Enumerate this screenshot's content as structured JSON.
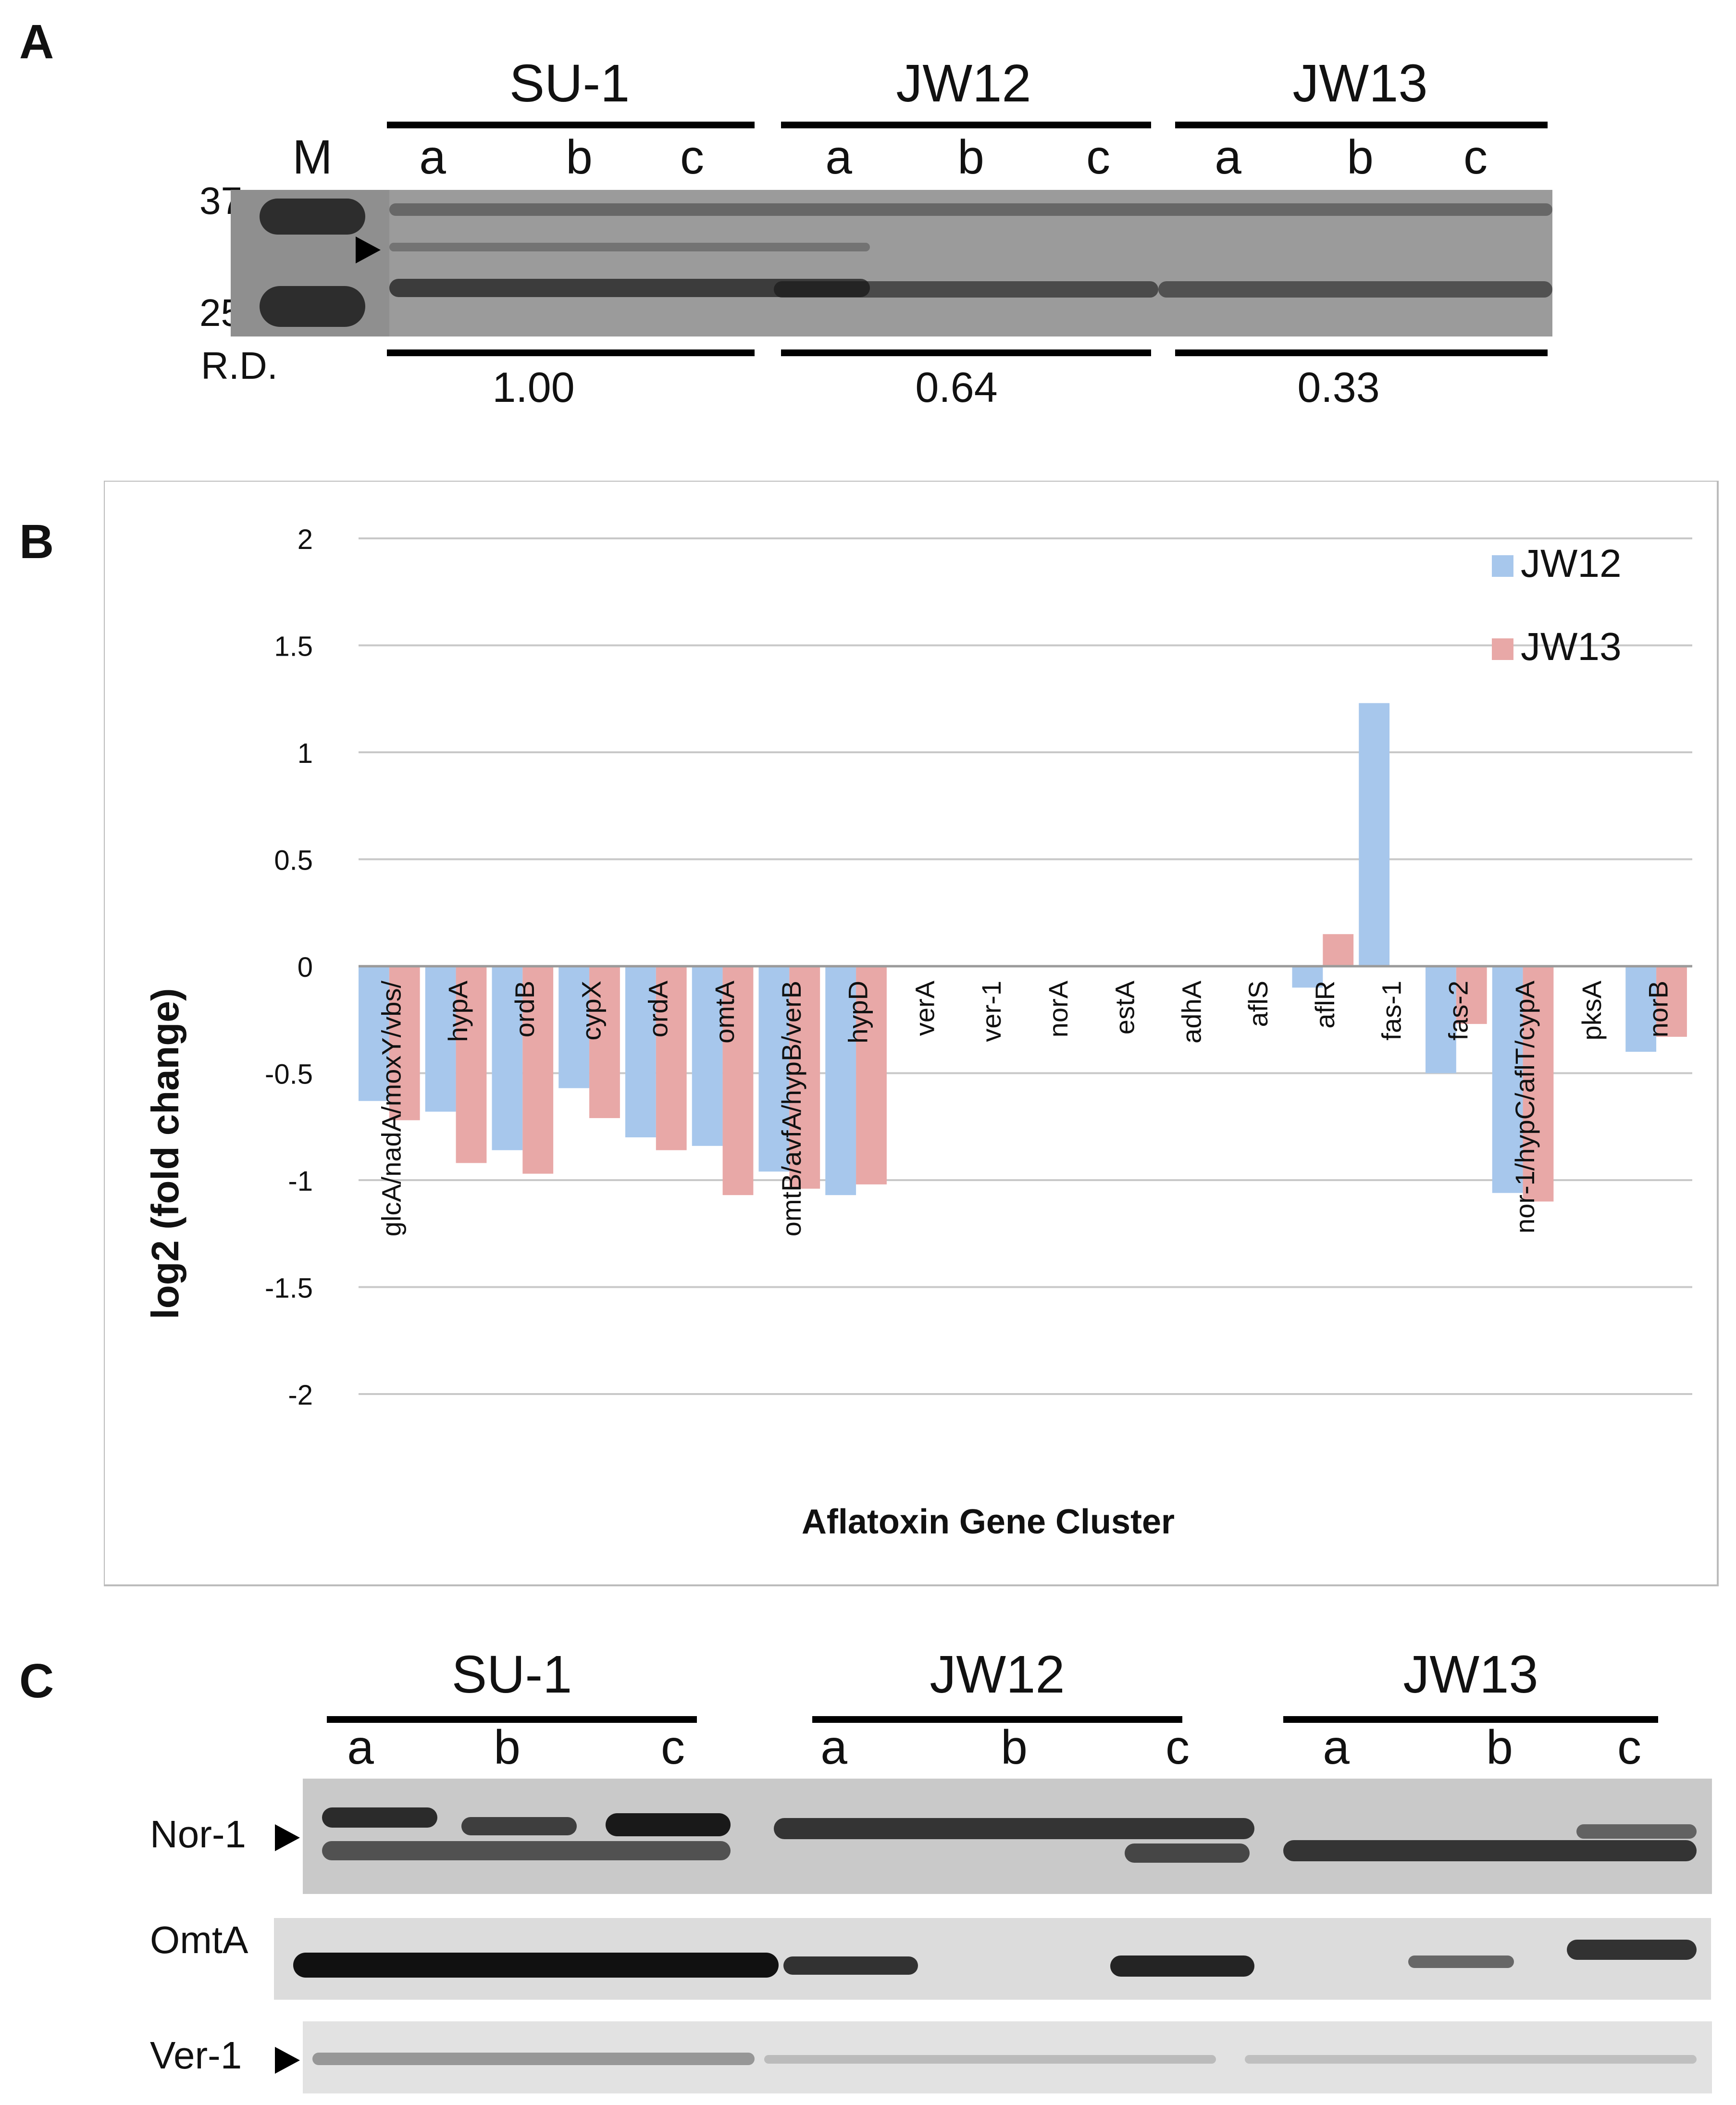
{
  "panelA": {
    "letter": "A",
    "marker_label": "M",
    "marker_37": "37",
    "marker_25": "25",
    "groups": [
      "SU-1",
      "JW12",
      "JW13"
    ],
    "lanes": [
      "a",
      "b",
      "c"
    ],
    "rd_label": "R.D.",
    "rd_values": [
      "1.00",
      "0.64",
      "0.33"
    ]
  },
  "panelB": {
    "letter": "B",
    "chart_data": {
      "type": "bar",
      "title": "",
      "xlabel": "Aflatoxin Gene Cluster",
      "ylabel": "log2 (fold change)",
      "ylim": [
        -2,
        2
      ],
      "yticks": [
        "2",
        "1.5",
        "1",
        "0.5",
        "0",
        "-0.5",
        "-1",
        "-1.5",
        "-2"
      ],
      "grid": true,
      "legend_position": "top-right",
      "categories": [
        "glcA/nadA/moxY/vbs/",
        "hypA",
        "ordB",
        "cypX",
        "ordA",
        "omtA",
        "omtB/avfA/hypB/verB",
        "hypD",
        "verA",
        "ver-1",
        "norA",
        "estA",
        "adhA",
        "aflS",
        "aflR",
        "fas-1",
        "fas-2",
        "nor-1/hypC/aflT/cypA",
        "pksA",
        "norB"
      ],
      "series": [
        {
          "name": "JW12",
          "color": "#a7c7ec",
          "values": [
            -0.63,
            -0.68,
            -0.86,
            -0.57,
            -0.8,
            -0.84,
            -0.96,
            -1.07,
            0,
            0,
            0,
            0,
            0,
            0,
            -0.1,
            1.23,
            -0.5,
            -1.06,
            0,
            -0.4
          ]
        },
        {
          "name": "JW13",
          "color": "#e8a8a7",
          "values": [
            -0.72,
            -0.92,
            -0.97,
            -0.71,
            -0.86,
            -1.07,
            -1.04,
            -1.02,
            0,
            0,
            0,
            0,
            0,
            0,
            0.15,
            0,
            -0.27,
            -1.1,
            0,
            -0.33
          ]
        }
      ]
    }
  },
  "panelC": {
    "letter": "C",
    "groups": [
      "SU-1",
      "JW12",
      "JW13"
    ],
    "lanes": [
      "a",
      "b",
      "c"
    ],
    "rows": [
      "Nor-1",
      "OmtA",
      "Ver-1"
    ]
  }
}
